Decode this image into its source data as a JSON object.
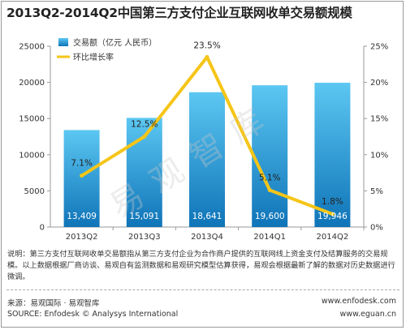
{
  "title": "2013Q2-2014Q2中国第三方支付企业互联网收单交易额规模",
  "watermark": "易观智库",
  "colors": {
    "bar_top": "#5cc7f2",
    "bar_bottom": "#0f74b8",
    "line": "#f5c518",
    "value_label": "#ffffff"
  },
  "chart_data": {
    "type": "bar",
    "categories": [
      "2013Q2",
      "2013Q3",
      "2013Q4",
      "2014Q1",
      "2014Q2"
    ],
    "series": [
      {
        "name": "交易额（亿元 人民币）",
        "type": "bar",
        "axis": "left",
        "values": [
          13409,
          15091,
          18641,
          19600,
          19946
        ],
        "labels": [
          "13,409",
          "15,091",
          "18,641",
          "19,600",
          "19,946"
        ]
      },
      {
        "name": "环比增长率",
        "type": "line",
        "axis": "right",
        "values": [
          7.1,
          12.5,
          23.5,
          5.1,
          1.8
        ],
        "labels": [
          "7.1%",
          "12.5%",
          "23.5%",
          "5.1%",
          "1.8%"
        ]
      }
    ],
    "y_left": {
      "lim": [
        0,
        25000
      ],
      "ticks": [
        "0",
        "5000",
        "10000",
        "15000",
        "20000",
        "25000"
      ]
    },
    "y_right": {
      "lim": [
        0,
        25
      ],
      "ticks": [
        "0%",
        "5%",
        "10%",
        "15%",
        "20%",
        "25%"
      ]
    },
    "legend": "top-left",
    "grid": false
  },
  "notes": "说明：第三方支付互联网收单交易额指从第三方支付企业为合作商户提供的互联网线上资金支付及结算服务的交易规模。以上数据根据厂商访谈、易观自有监测数据和易观研究模型估算获得，易观会根据最新了解的数据对历史数据进行微调。",
  "footer": {
    "source_cn": "来源：易观国际 · 易观智库",
    "source_en": "SOURCE: Enfodesk © Analysys International",
    "url1": "www.enfodesk.com",
    "url2": "www.eguan.cn"
  }
}
